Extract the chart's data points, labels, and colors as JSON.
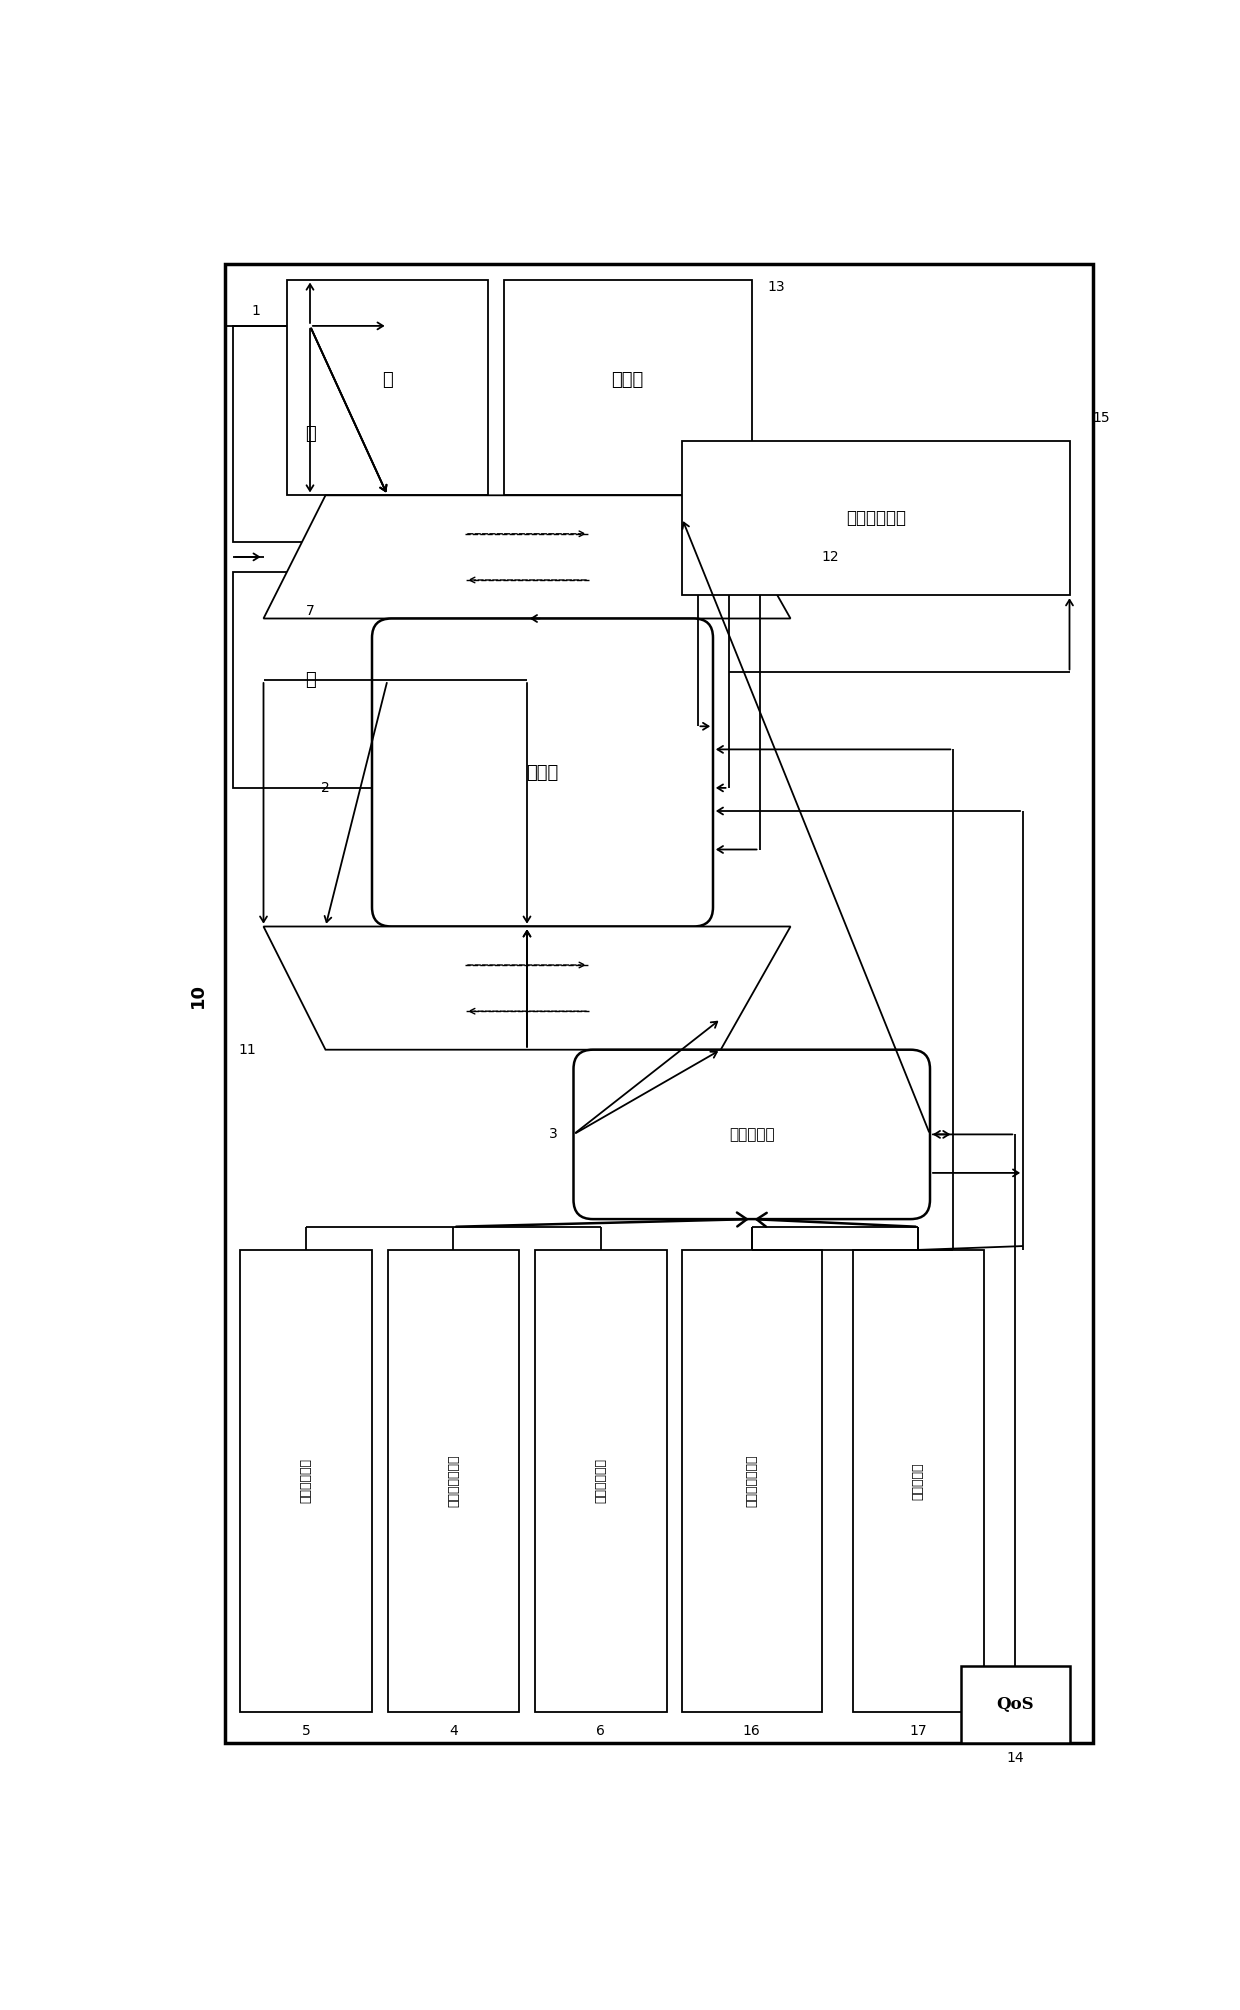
{
  "fig_width": 12.4,
  "fig_height": 20.1,
  "bg_color": "#ffffff",
  "labels": {
    "key_in": "键",
    "val_in": "值",
    "key_out": "键",
    "val_out": "输出值",
    "compressor": "压缩器",
    "comp_detector": "压缩预测器",
    "obj_name_dict": "对象签名字典",
    "obj_ext_name_dict": "对象扩展名字典",
    "estimate_algo_lib": "熵估计算法库",
    "comp_algo_perf_table": "压缩算法性能表",
    "comp_algo_lib": "压缩算法库",
    "perf_manager": "效率性能程序",
    "system_label": "10",
    "label_1": "1",
    "label_2": "2",
    "label_3": "3",
    "label_5": "5",
    "label_4": "4",
    "label_6": "6",
    "label_7": "7",
    "label_11": "11",
    "label_12": "12",
    "label_13": "13",
    "label_14": "14",
    "label_15": "15",
    "label_16": "16",
    "label_17": "17",
    "qos_label": "QoS"
  }
}
